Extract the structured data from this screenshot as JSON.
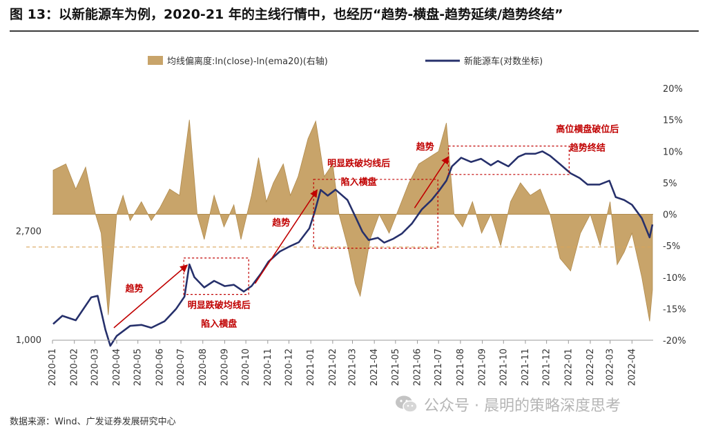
{
  "figure_title": "图 13：以新能源车为例，2020-21 年的主线行情中，也经历“趋势-横盘-趋势延续/趋势终结”",
  "source": "数据来源：Wind、广发证券发展研究中心",
  "watermark": "公众号 · 晨明的策略深度思考",
  "colors": {
    "line": "#26306b",
    "area": "#c8a46a",
    "area_stroke": "#b08a4c",
    "annotation": "#c00000",
    "dashed": "#d9a55a"
  },
  "chart_data": {
    "type": "line",
    "title": "",
    "legend_position": "top",
    "x_ticks": [
      "2020-01",
      "2020-02",
      "2020-03",
      "2020-04",
      "2020-05",
      "2020-06",
      "2020-07",
      "2020-08",
      "2020-09",
      "2020-10",
      "2020-11",
      "2020-12",
      "2021-01",
      "2021-02",
      "2021-03",
      "2021-04",
      "2021-05",
      "2021-06",
      "2021-07",
      "2021-08",
      "2021-09",
      "2021-10",
      "2021-11",
      "2021-12",
      "2022-01",
      "2022-02",
      "2022-03",
      "2022-04"
    ],
    "y_left": {
      "scale": "log",
      "ticks": [
        "1,000",
        "2,700"
      ],
      "tick_values": [
        1000,
        2700
      ],
      "range": [
        1000,
        10000
      ]
    },
    "y_right": {
      "ticks": [
        "20%",
        "15%",
        "10%",
        "5%",
        "0%",
        "-5%",
        "-10%",
        "-15%",
        "-20%"
      ],
      "tick_values": [
        20,
        15,
        10,
        5,
        0,
        -5,
        -10,
        -15,
        -20
      ],
      "range": [
        -20,
        20
      ]
    },
    "reference_line": {
      "axis": "right",
      "value": -5.2
    },
    "series": [
      {
        "name": "新能源车(对数坐标)",
        "kind": "line",
        "axis": "left",
        "points": [
          [
            "2020-01-02",
            1160
          ],
          [
            "2020-01-15",
            1250
          ],
          [
            "2020-02-03",
            1200
          ],
          [
            "2020-02-25",
            1480
          ],
          [
            "2020-03-05",
            1500
          ],
          [
            "2020-03-16",
            1100
          ],
          [
            "2020-03-23",
            950
          ],
          [
            "2020-04-01",
            1040
          ],
          [
            "2020-04-20",
            1140
          ],
          [
            "2020-05-06",
            1150
          ],
          [
            "2020-05-20",
            1120
          ],
          [
            "2020-06-08",
            1190
          ],
          [
            "2020-06-24",
            1330
          ],
          [
            "2020-07-06",
            1490
          ],
          [
            "2020-07-13",
            2000
          ],
          [
            "2020-07-20",
            1780
          ],
          [
            "2020-08-03",
            1620
          ],
          [
            "2020-08-17",
            1720
          ],
          [
            "2020-09-01",
            1640
          ],
          [
            "2020-09-14",
            1660
          ],
          [
            "2020-09-28",
            1560
          ],
          [
            "2020-10-09",
            1640
          ],
          [
            "2020-10-23",
            1850
          ],
          [
            "2020-11-02",
            2050
          ],
          [
            "2020-11-18",
            2250
          ],
          [
            "2020-12-01",
            2350
          ],
          [
            "2020-12-15",
            2450
          ],
          [
            "2020-12-30",
            2780
          ],
          [
            "2021-01-06",
            3200
          ],
          [
            "2021-01-15",
            3950
          ],
          [
            "2021-01-25",
            3750
          ],
          [
            "2021-02-05",
            3960
          ],
          [
            "2021-02-22",
            3600
          ],
          [
            "2021-03-05",
            3100
          ],
          [
            "2021-03-15",
            2700
          ],
          [
            "2021-03-24",
            2500
          ],
          [
            "2021-04-06",
            2550
          ],
          [
            "2021-04-15",
            2440
          ],
          [
            "2021-04-28",
            2530
          ],
          [
            "2021-05-10",
            2650
          ],
          [
            "2021-05-24",
            2900
          ],
          [
            "2021-06-07",
            3300
          ],
          [
            "2021-06-21",
            3600
          ],
          [
            "2021-07-01",
            3900
          ],
          [
            "2021-07-12",
            4300
          ],
          [
            "2021-07-20",
            4900
          ],
          [
            "2021-08-02",
            5300
          ],
          [
            "2021-08-16",
            5100
          ],
          [
            "2021-08-30",
            5250
          ],
          [
            "2021-09-13",
            4950
          ],
          [
            "2021-09-23",
            5150
          ],
          [
            "2021-10-08",
            4900
          ],
          [
            "2021-10-22",
            5350
          ],
          [
            "2021-11-01",
            5500
          ],
          [
            "2021-11-15",
            5500
          ],
          [
            "2021-11-25",
            5620
          ],
          [
            "2021-12-06",
            5400
          ],
          [
            "2021-12-20",
            5000
          ],
          [
            "2022-01-04",
            4600
          ],
          [
            "2022-01-17",
            4400
          ],
          [
            "2022-01-28",
            4150
          ],
          [
            "2022-02-14",
            4150
          ],
          [
            "2022-02-28",
            4300
          ],
          [
            "2022-03-09",
            3700
          ],
          [
            "2022-03-21",
            3600
          ],
          [
            "2022-04-01",
            3450
          ],
          [
            "2022-04-15",
            3050
          ],
          [
            "2022-04-26",
            2560
          ],
          [
            "2022-04-30",
            2880
          ]
        ]
      },
      {
        "name": "均线偏离度:ln(close)-ln(ema20)(右轴)",
        "kind": "area",
        "axis": "right",
        "points": [
          [
            "2020-01-02",
            7
          ],
          [
            "2020-01-20",
            8
          ],
          [
            "2020-02-03",
            4
          ],
          [
            "2020-02-17",
            7.5
          ],
          [
            "2020-03-02",
            0
          ],
          [
            "2020-03-10",
            -3
          ],
          [
            "2020-03-20",
            -16
          ],
          [
            "2020-04-01",
            0
          ],
          [
            "2020-04-10",
            3
          ],
          [
            "2020-04-20",
            -1
          ],
          [
            "2020-05-06",
            2
          ],
          [
            "2020-05-20",
            -1
          ],
          [
            "2020-06-01",
            1
          ],
          [
            "2020-06-15",
            4
          ],
          [
            "2020-06-29",
            3
          ],
          [
            "2020-07-13",
            15
          ],
          [
            "2020-07-24",
            0
          ],
          [
            "2020-08-03",
            -4
          ],
          [
            "2020-08-17",
            3
          ],
          [
            "2020-08-31",
            -2
          ],
          [
            "2020-09-14",
            1.5
          ],
          [
            "2020-09-24",
            -4
          ],
          [
            "2020-10-09",
            3
          ],
          [
            "2020-10-19",
            9
          ],
          [
            "2020-10-30",
            2
          ],
          [
            "2020-11-09",
            5
          ],
          [
            "2020-11-23",
            8
          ],
          [
            "2020-12-03",
            3
          ],
          [
            "2020-12-14",
            6
          ],
          [
            "2020-12-28",
            12
          ],
          [
            "2021-01-08",
            14.8
          ],
          [
            "2021-01-20",
            6
          ],
          [
            "2021-02-01",
            8
          ],
          [
            "2021-02-10",
            0
          ],
          [
            "2021-02-22",
            -5
          ],
          [
            "2021-03-05",
            -11
          ],
          [
            "2021-03-12",
            -13
          ],
          [
            "2021-03-26",
            -4
          ],
          [
            "2021-04-08",
            0
          ],
          [
            "2021-04-22",
            -3
          ],
          [
            "2021-05-06",
            1
          ],
          [
            "2021-05-20",
            5
          ],
          [
            "2021-06-03",
            8
          ],
          [
            "2021-06-17",
            9
          ],
          [
            "2021-07-01",
            10
          ],
          [
            "2021-07-12",
            14.5
          ],
          [
            "2021-07-23",
            0
          ],
          [
            "2021-08-04",
            -2
          ],
          [
            "2021-08-18",
            2
          ],
          [
            "2021-08-31",
            -3
          ],
          [
            "2021-09-13",
            0
          ],
          [
            "2021-09-27",
            -5
          ],
          [
            "2021-10-11",
            2
          ],
          [
            "2021-10-25",
            5
          ],
          [
            "2021-11-08",
            3
          ],
          [
            "2021-11-22",
            4
          ],
          [
            "2021-12-06",
            0
          ],
          [
            "2021-12-20",
            -7
          ],
          [
            "2022-01-04",
            -9
          ],
          [
            "2022-01-18",
            -3
          ],
          [
            "2022-02-01",
            0
          ],
          [
            "2022-02-15",
            -5
          ],
          [
            "2022-03-01",
            2
          ],
          [
            "2022-03-11",
            -8
          ],
          [
            "2022-03-21",
            -6
          ],
          [
            "2022-04-01",
            -3
          ],
          [
            "2022-04-15",
            -10
          ],
          [
            "2022-04-26",
            -17
          ],
          [
            "2022-04-30",
            -12
          ]
        ]
      }
    ],
    "annotations": [
      {
        "text": "趋势",
        "arrow_from": [
          "2020-03-28",
          1120
        ],
        "arrow_to": [
          "2020-07-10",
          1990
        ],
        "label_at": [
          "2020-04-26",
          1560
        ]
      },
      {
        "text": "趋势",
        "arrow_from": [
          "2020-10-14",
          1680
        ],
        "arrow_to": [
          "2021-01-10",
          3950
        ],
        "label_at": [
          "2020-11-20",
          2850
        ]
      },
      {
        "text": "趋势",
        "arrow_from": [
          "2021-05-28",
          3350
        ],
        "arrow_to": [
          "2021-07-15",
          5350
        ],
        "label_at": [
          "2021-06-12",
          5700
        ]
      },
      {
        "text": "明显跌破均线后\n陷入横盘",
        "box_from": [
          "2020-07-05",
          2120
        ],
        "box_to": [
          "2020-10-05",
          1520
        ],
        "label_at": [
          "2020-08-24",
          1340
        ]
      },
      {
        "text": "明显跌破均线后\n陷入横盘",
        "box_from": [
          "2021-01-05",
          4350
        ],
        "box_to": [
          "2021-06-30",
          2320
        ],
        "label_at": [
          "2021-03-10",
          4900
        ]
      },
      {
        "text": "高位横盘破位后\n趋势终结",
        "box_from": [
          "2021-07-15",
          5900
        ],
        "box_to": [
          "2022-01-02",
          4550
        ],
        "label_at": [
          "2022-01-28",
          6700
        ]
      }
    ]
  }
}
